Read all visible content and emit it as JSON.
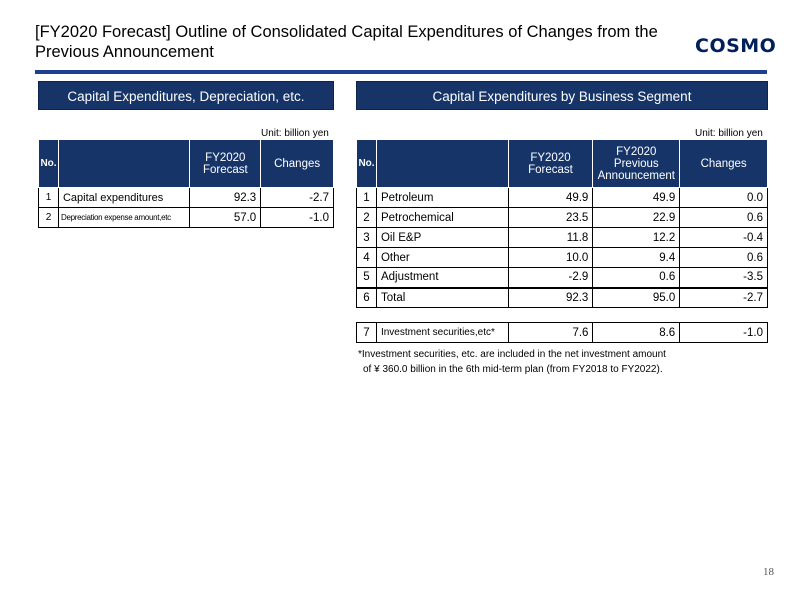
{
  "header": {
    "title": "[FY2020 Forecast] Outline of Consolidated Capital Expenditures of Changes from the Previous Announcement",
    "logo_text": "COSMO"
  },
  "left": {
    "banner": "Capital Expenditures, Depreciation, etc.",
    "unit": "Unit: billion yen",
    "headers": {
      "no": "No.",
      "blank": "",
      "forecast": "FY2020 Forecast",
      "changes": "Changes"
    },
    "rows": [
      {
        "no": "1",
        "label": "Capital expenditures",
        "forecast": "92.3",
        "changes": "-2.7"
      },
      {
        "no": "2",
        "label": "Depreciation expense amount,etc",
        "forecast": "57.0",
        "changes": "-1.0"
      }
    ]
  },
  "right": {
    "banner": "Capital Expenditures by Business Segment",
    "unit": "Unit: billion yen",
    "headers": {
      "no": "No.",
      "blank": "",
      "forecast": "FY2020 Forecast",
      "previous": "FY2020 Previous Announcement",
      "changes": "Changes"
    },
    "rows": [
      {
        "no": "1",
        "label": "Petroleum",
        "forecast": "49.9",
        "previous": "49.9",
        "changes": "0.0"
      },
      {
        "no": "2",
        "label": "Petrochemical",
        "forecast": "23.5",
        "previous": "22.9",
        "changes": "0.6"
      },
      {
        "no": "3",
        "label": "Oil E&P",
        "forecast": "11.8",
        "previous": "12.2",
        "changes": "-0.4"
      },
      {
        "no": "4",
        "label": "Other",
        "forecast": "10.0",
        "previous": "9.4",
        "changes": "0.6"
      },
      {
        "no": "5",
        "label": "Adjustment",
        "forecast": "-2.9",
        "previous": "0.6",
        "changes": "-3.5"
      },
      {
        "no": "6",
        "label": "Total",
        "forecast": "92.3",
        "previous": "95.0",
        "changes": "-2.7"
      }
    ],
    "extra_row": {
      "no": "7",
      "label": "Investment securities,etc*",
      "forecast": "7.6",
      "previous": "8.6",
      "changes": "-1.0"
    },
    "note_line1": "*Investment securities, etc. are included in the net investment amount",
    "note_line2": "of ¥ 360.0 billion in the 6th mid-term plan (from FY2018 to FY2022)."
  },
  "footer": {
    "page_number": "18"
  },
  "colors": {
    "navy": "#163468",
    "rule": "#1f3f8f",
    "logo": "#001f5c"
  }
}
